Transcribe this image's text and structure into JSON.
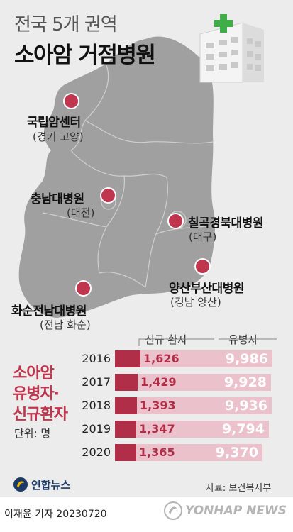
{
  "title": {
    "line1": "전국 5개 권역",
    "line2": "소아암 거점병원"
  },
  "hospitals": [
    {
      "name": "국립암센터",
      "location": "(경기 고양)"
    },
    {
      "name": "충남대병원",
      "location": "(대전)"
    },
    {
      "name": "칠곡경북대병원",
      "location": "(대구)"
    },
    {
      "name": "양산부산대병원",
      "location": "(경남 양산)"
    },
    {
      "name": "화순전남대병원",
      "location": "(전남 화순)"
    }
  ],
  "section": {
    "title_lines": [
      "소아암",
      "유병자·",
      "신규환자"
    ],
    "unit": "단위: 명"
  },
  "chart_data": {
    "type": "bar",
    "categories": [
      "2016",
      "2017",
      "2018",
      "2019",
      "2020"
    ],
    "series": [
      {
        "name": "신규 환자",
        "values": [
          1626,
          1429,
          1393,
          1347,
          1365
        ],
        "labels": [
          "1,626",
          "1,429",
          "1,393",
          "1,347",
          "1,365"
        ]
      },
      {
        "name": "유병자",
        "values": [
          9986,
          9928,
          9936,
          9794,
          9370
        ],
        "labels": [
          "9,986",
          "9,928",
          "9,936",
          "9,794",
          "9,370"
        ]
      }
    ],
    "colors": {
      "new": "#b02e48",
      "total": "#ebc2cb"
    }
  },
  "source": "자료: 보건복지부",
  "footer": {
    "logo": "연합뉴스",
    "reporter": "이재윤 기자  20230720",
    "watermark": "YONHAP NEWS"
  },
  "icons": [
    "hospital-building-icon",
    "yonhap-logo-icon"
  ],
  "colors": {
    "accent": "#c0364e",
    "map_fill": "#9e9e9e",
    "background": "#ececec"
  }
}
